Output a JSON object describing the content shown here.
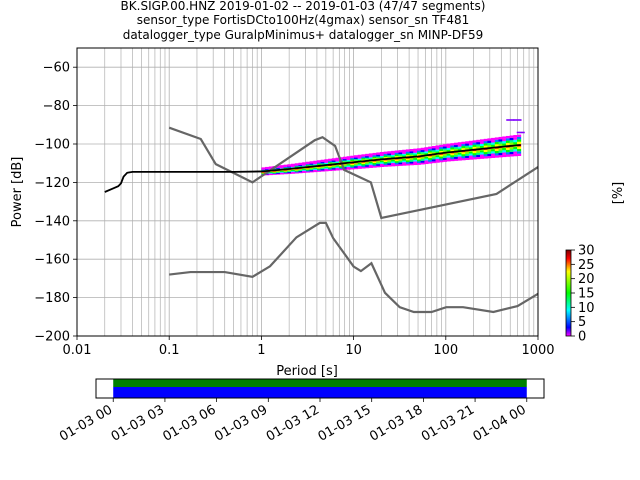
{
  "chart_data": {
    "type": "heatmap",
    "title_lines": [
      "BK.SIGP.00.HNZ   2019-01-02 -- 2019-01-03  (47/47 segments)",
      "sensor_type FortisDCto100Hz(4gmax) sensor_sn TF481",
      "datalogger_type GuralpMinimus+ datalogger_sn MINP-DF59"
    ],
    "xlabel": "Period [s]",
    "ylabel": "Power [dB]",
    "xscale": "log",
    "xlim": [
      0.01,
      1000
    ],
    "ylim": [
      -200,
      -50
    ],
    "xticks": [
      {
        "v": 0.01,
        "label": "0.01"
      },
      {
        "v": 0.1,
        "label": "0.1"
      },
      {
        "v": 1,
        "label": "1"
      },
      {
        "v": 10,
        "label": "10"
      },
      {
        "v": 100,
        "label": "100"
      },
      {
        "v": 1000,
        "label": "1000"
      }
    ],
    "yticks": [
      {
        "v": -200,
        "label": "−200"
      },
      {
        "v": -180,
        "label": "−180"
      },
      {
        "v": -160,
        "label": "−160"
      },
      {
        "v": -140,
        "label": "−140"
      },
      {
        "v": -120,
        "label": "−120"
      },
      {
        "v": -100,
        "label": "−100"
      },
      {
        "v": -80,
        "label": "−80"
      },
      {
        "v": -60,
        "label": "−60"
      }
    ],
    "grid": true,
    "colorbar": {
      "label": "[%]",
      "min": 0,
      "max": 30,
      "ticks": [
        {
          "v": 0,
          "label": "0"
        },
        {
          "v": 5,
          "label": "5"
        },
        {
          "v": 10,
          "label": "10"
        },
        {
          "v": 15,
          "label": "15"
        },
        {
          "v": 20,
          "label": "20"
        },
        {
          "v": 25,
          "label": "25"
        },
        {
          "v": 30,
          "label": "30"
        }
      ]
    },
    "noise_models": {
      "color": "#666666",
      "high": [
        [
          0.1,
          -91.5
        ],
        [
          0.22,
          -97.4
        ],
        [
          0.32,
          -110.5
        ],
        [
          0.8,
          -120
        ],
        [
          3.8,
          -98
        ],
        [
          4.6,
          -96.5
        ],
        [
          6.3,
          -101
        ],
        [
          7.9,
          -113.5
        ],
        [
          15.4,
          -120
        ],
        [
          20,
          -138.5
        ],
        [
          354.8,
          -126
        ],
        [
          1000,
          -112
        ]
      ],
      "low": [
        [
          0.1,
          -168
        ],
        [
          0.17,
          -166.7
        ],
        [
          0.4,
          -166.7
        ],
        [
          0.8,
          -169.2
        ],
        [
          1.24,
          -163.7
        ],
        [
          2.4,
          -148.6
        ],
        [
          4.3,
          -141.1
        ],
        [
          5,
          -141.1
        ],
        [
          6,
          -149
        ],
        [
          10,
          -163.8
        ],
        [
          12,
          -166.2
        ],
        [
          15.6,
          -162.1
        ],
        [
          21.9,
          -177.5
        ],
        [
          31.6,
          -185
        ],
        [
          45,
          -187.5
        ],
        [
          70,
          -187.5
        ],
        [
          101,
          -185
        ],
        [
          154,
          -185
        ],
        [
          328,
          -187.5
        ],
        [
          600,
          -184.4
        ],
        [
          1000,
          -178
        ]
      ]
    },
    "mode_curve": {
      "color": "#000000",
      "points": [
        [
          0.02,
          -125
        ],
        [
          0.025,
          -123
        ],
        [
          0.028,
          -122
        ],
        [
          0.03,
          -120.5
        ],
        [
          0.032,
          -117
        ],
        [
          0.035,
          -115
        ],
        [
          0.04,
          -114.5
        ],
        [
          0.1,
          -114.5
        ],
        [
          0.5,
          -114.5
        ],
        [
          1,
          -114.3
        ],
        [
          2,
          -113
        ],
        [
          5,
          -111
        ],
        [
          10,
          -109.5
        ],
        [
          20,
          -108
        ],
        [
          50,
          -106.5
        ],
        [
          100,
          -104.5
        ],
        [
          200,
          -103
        ],
        [
          500,
          -101
        ],
        [
          650,
          -100.5
        ]
      ]
    },
    "pdf_band": {
      "period_range": [
        1.0,
        650
      ],
      "center": [
        [
          1,
          -114.3
        ],
        [
          2,
          -113
        ],
        [
          5,
          -111
        ],
        [
          10,
          -109.5
        ],
        [
          20,
          -108
        ],
        [
          50,
          -106.5
        ],
        [
          100,
          -104.5
        ],
        [
          200,
          -103
        ],
        [
          500,
          -101
        ],
        [
          650,
          -100.5
        ]
      ],
      "half_spread_db": [
        [
          1,
          1.5
        ],
        [
          10,
          3
        ],
        [
          100,
          4
        ],
        [
          650,
          5
        ]
      ]
    },
    "pdf_outliers": [
      [
        500,
        -87.5
      ],
      [
        600,
        -87.5
      ],
      [
        650,
        -94
      ]
    ],
    "timeline": {
      "xlim_hours": [
        -1,
        25
      ],
      "covered_hours": [
        0,
        24
      ],
      "colors": [
        "#008000",
        "#0000ff"
      ],
      "ticks": [
        {
          "h": 0,
          "label": "01-03 00"
        },
        {
          "h": 3,
          "label": "01-03 03"
        },
        {
          "h": 6,
          "label": "01-03 06"
        },
        {
          "h": 9,
          "label": "01-03 09"
        },
        {
          "h": 12,
          "label": "01-03 12"
        },
        {
          "h": 15,
          "label": "01-03 15"
        },
        {
          "h": 18,
          "label": "01-03 18"
        },
        {
          "h": 21,
          "label": "01-03 21"
        },
        {
          "h": 24,
          "label": "01-04 00"
        }
      ]
    }
  }
}
